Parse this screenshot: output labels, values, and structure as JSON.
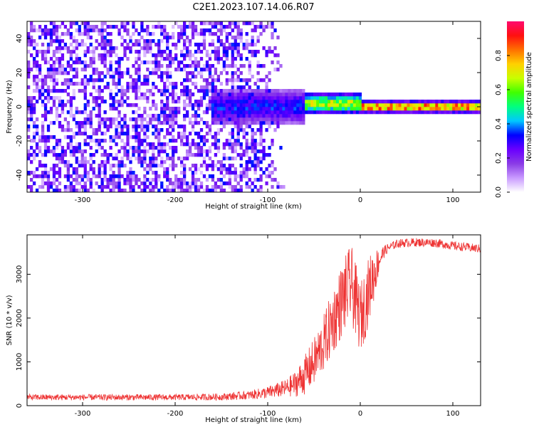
{
  "title": "C2E1.2023.107.14.06.R07",
  "chart_data": [
    {
      "type": "heatmap",
      "xlabel": "Height of straight line (km)",
      "ylabel": "Frequency (Hz)",
      "xlim": [
        -360,
        130
      ],
      "ylim": [
        -50,
        50
      ],
      "x_ticks": [
        -300,
        -200,
        -100,
        0,
        100
      ],
      "y_ticks": [
        -40,
        -20,
        0,
        20,
        40
      ],
      "colorbar": {
        "label": "Normalized spectral amplitude",
        "range": [
          0,
          1
        ],
        "ticks": [
          0.0,
          0.2,
          0.4,
          0.6,
          0.8
        ],
        "tick_labels": [
          "0.0",
          "0.2",
          "0.4",
          "0.6",
          "0.8"
        ],
        "colors": [
          "#ffffff",
          "#c99aff",
          "#8a3ce6",
          "#6a00ff",
          "#0000ff",
          "#00c8ff",
          "#00ff80",
          "#40ff00",
          "#c8ff00",
          "#ffd000",
          "#ff7000",
          "#ff1010",
          "#ff0a6e"
        ]
      },
      "regions": [
        {
          "feature": "scattered noise",
          "x_range": [
            -360,
            -80
          ],
          "y_range": [
            -50,
            50
          ],
          "level": 0.1
        },
        {
          "feature": "emerging signal",
          "x_range": [
            -160,
            -60
          ],
          "y_center": 0,
          "spread": 7,
          "level": 0.35
        },
        {
          "feature": "strong signal",
          "x_range": [
            -60,
            0
          ],
          "y_center": 2,
          "spread": 4,
          "level": 0.7
        },
        {
          "feature": "carrier line",
          "x_range": [
            0,
            130
          ],
          "y_center": 0,
          "spread": 2,
          "level": 0.95
        }
      ],
      "grid": false
    },
    {
      "type": "line",
      "xlabel": "Height of straight line (km)",
      "ylabel": "SNR (10 * v/v)",
      "xlim": [
        -360,
        130
      ],
      "ylim": [
        0,
        3900
      ],
      "x_ticks": [
        -300,
        -200,
        -100,
        0,
        100
      ],
      "y_ticks": [
        0,
        1000,
        2000,
        3000
      ],
      "color": "#ee3333",
      "series": [
        {
          "x": [
            -360,
            -300,
            -250,
            -200,
            -150,
            -120,
            -100,
            -80,
            -70,
            -60,
            -50,
            -40,
            -30,
            -20,
            -10,
            0,
            5,
            10,
            15,
            20,
            25,
            30,
            40,
            50,
            60,
            80,
            100,
            130
          ],
          "y": [
            190,
            190,
            190,
            190,
            200,
            240,
            300,
            400,
            500,
            700,
            1000,
            1400,
            1900,
            2400,
            2800,
            2000,
            2300,
            2700,
            3000,
            3300,
            3500,
            3600,
            3700,
            3720,
            3730,
            3720,
            3650,
            3580
          ],
          "noise": [
            70,
            70,
            70,
            70,
            80,
            100,
            140,
            200,
            300,
            450,
            550,
            650,
            750,
            850,
            900,
            800,
            800,
            750,
            600,
            300,
            150,
            100,
            100,
            100,
            100,
            100,
            100,
            100
          ]
        }
      ],
      "grid": false
    }
  ]
}
